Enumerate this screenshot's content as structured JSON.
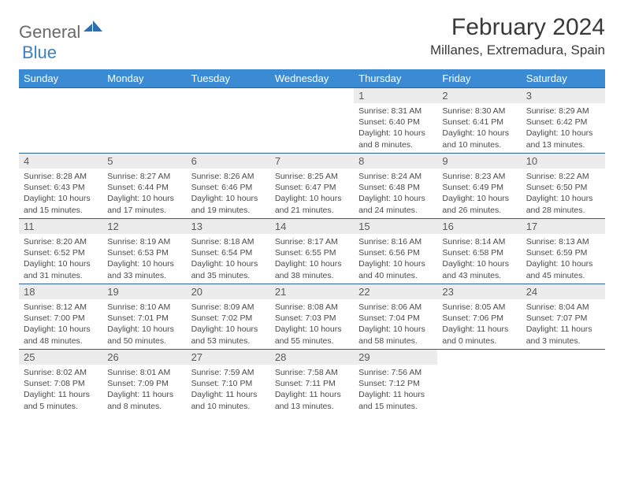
{
  "colors": {
    "header_bg": "#3b8bd4",
    "header_text": "#ffffff",
    "row_border": "#2d5f8f",
    "daynum_bg": "#ececec",
    "daynum_text": "#5a5a5a",
    "info_text": "#4a4a4a",
    "title_text": "#393939",
    "logo_gray": "#6a6a6a",
    "logo_blue": "#3b7fc4",
    "page_bg": "#ffffff"
  },
  "fonts": {
    "title_size": 30,
    "location_size": 17,
    "weekday_size": 13,
    "daynum_size": 13,
    "info_size": 10.5,
    "logo_size": 22
  },
  "logo": {
    "part1": "General",
    "part2": "Blue"
  },
  "title": "February 2024",
  "location": "Millanes, Extremadura, Spain",
  "weekdays": [
    "Sunday",
    "Monday",
    "Tuesday",
    "Wednesday",
    "Thursday",
    "Friday",
    "Saturday"
  ],
  "first_weekday_index": 4,
  "days": [
    {
      "n": "1",
      "sunrise": "8:31 AM",
      "sunset": "6:40 PM",
      "daylight": "10 hours and 8 minutes."
    },
    {
      "n": "2",
      "sunrise": "8:30 AM",
      "sunset": "6:41 PM",
      "daylight": "10 hours and 10 minutes."
    },
    {
      "n": "3",
      "sunrise": "8:29 AM",
      "sunset": "6:42 PM",
      "daylight": "10 hours and 13 minutes."
    },
    {
      "n": "4",
      "sunrise": "8:28 AM",
      "sunset": "6:43 PM",
      "daylight": "10 hours and 15 minutes."
    },
    {
      "n": "5",
      "sunrise": "8:27 AM",
      "sunset": "6:44 PM",
      "daylight": "10 hours and 17 minutes."
    },
    {
      "n": "6",
      "sunrise": "8:26 AM",
      "sunset": "6:46 PM",
      "daylight": "10 hours and 19 minutes."
    },
    {
      "n": "7",
      "sunrise": "8:25 AM",
      "sunset": "6:47 PM",
      "daylight": "10 hours and 21 minutes."
    },
    {
      "n": "8",
      "sunrise": "8:24 AM",
      "sunset": "6:48 PM",
      "daylight": "10 hours and 24 minutes."
    },
    {
      "n": "9",
      "sunrise": "8:23 AM",
      "sunset": "6:49 PM",
      "daylight": "10 hours and 26 minutes."
    },
    {
      "n": "10",
      "sunrise": "8:22 AM",
      "sunset": "6:50 PM",
      "daylight": "10 hours and 28 minutes."
    },
    {
      "n": "11",
      "sunrise": "8:20 AM",
      "sunset": "6:52 PM",
      "daylight": "10 hours and 31 minutes."
    },
    {
      "n": "12",
      "sunrise": "8:19 AM",
      "sunset": "6:53 PM",
      "daylight": "10 hours and 33 minutes."
    },
    {
      "n": "13",
      "sunrise": "8:18 AM",
      "sunset": "6:54 PM",
      "daylight": "10 hours and 35 minutes."
    },
    {
      "n": "14",
      "sunrise": "8:17 AM",
      "sunset": "6:55 PM",
      "daylight": "10 hours and 38 minutes."
    },
    {
      "n": "15",
      "sunrise": "8:16 AM",
      "sunset": "6:56 PM",
      "daylight": "10 hours and 40 minutes."
    },
    {
      "n": "16",
      "sunrise": "8:14 AM",
      "sunset": "6:58 PM",
      "daylight": "10 hours and 43 minutes."
    },
    {
      "n": "17",
      "sunrise": "8:13 AM",
      "sunset": "6:59 PM",
      "daylight": "10 hours and 45 minutes."
    },
    {
      "n": "18",
      "sunrise": "8:12 AM",
      "sunset": "7:00 PM",
      "daylight": "10 hours and 48 minutes."
    },
    {
      "n": "19",
      "sunrise": "8:10 AM",
      "sunset": "7:01 PM",
      "daylight": "10 hours and 50 minutes."
    },
    {
      "n": "20",
      "sunrise": "8:09 AM",
      "sunset": "7:02 PM",
      "daylight": "10 hours and 53 minutes."
    },
    {
      "n": "21",
      "sunrise": "8:08 AM",
      "sunset": "7:03 PM",
      "daylight": "10 hours and 55 minutes."
    },
    {
      "n": "22",
      "sunrise": "8:06 AM",
      "sunset": "7:04 PM",
      "daylight": "10 hours and 58 minutes."
    },
    {
      "n": "23",
      "sunrise": "8:05 AM",
      "sunset": "7:06 PM",
      "daylight": "11 hours and 0 minutes."
    },
    {
      "n": "24",
      "sunrise": "8:04 AM",
      "sunset": "7:07 PM",
      "daylight": "11 hours and 3 minutes."
    },
    {
      "n": "25",
      "sunrise": "8:02 AM",
      "sunset": "7:08 PM",
      "daylight": "11 hours and 5 minutes."
    },
    {
      "n": "26",
      "sunrise": "8:01 AM",
      "sunset": "7:09 PM",
      "daylight": "11 hours and 8 minutes."
    },
    {
      "n": "27",
      "sunrise": "7:59 AM",
      "sunset": "7:10 PM",
      "daylight": "11 hours and 10 minutes."
    },
    {
      "n": "28",
      "sunrise": "7:58 AM",
      "sunset": "7:11 PM",
      "daylight": "11 hours and 13 minutes."
    },
    {
      "n": "29",
      "sunrise": "7:56 AM",
      "sunset": "7:12 PM",
      "daylight": "11 hours and 15 minutes."
    }
  ],
  "labels": {
    "sunrise": "Sunrise: ",
    "sunset": "Sunset: ",
    "daylight": "Daylight: "
  }
}
